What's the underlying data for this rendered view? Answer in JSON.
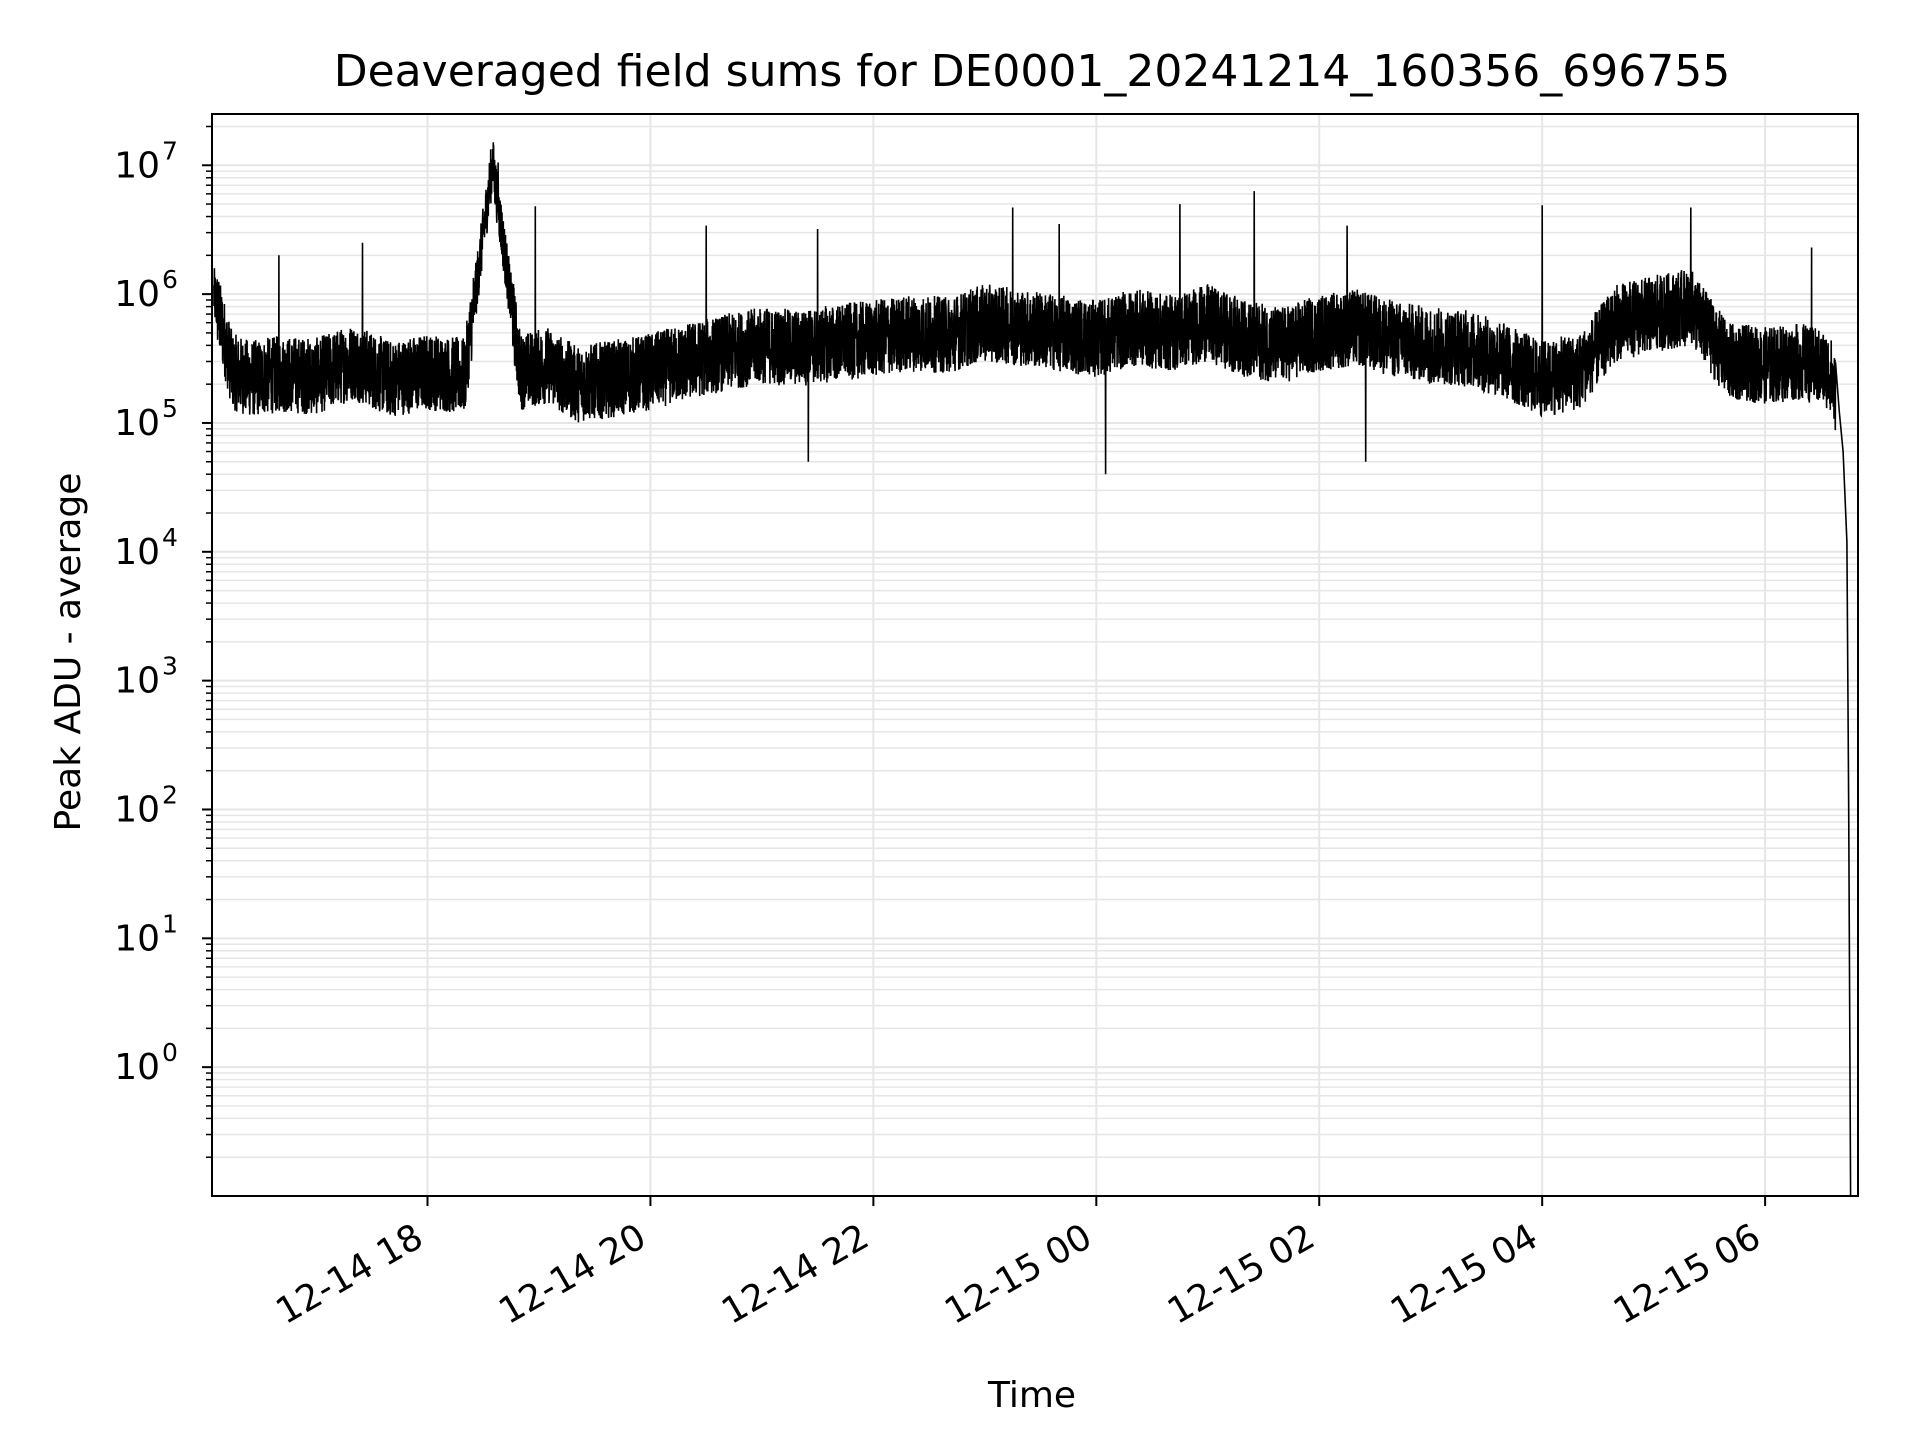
{
  "chart_data": {
    "type": "line",
    "title": "Deaveraged field sums for DE0001_20241214_160356_696755",
    "xlabel": "Time",
    "ylabel": "Peak ADU - average",
    "y_scale": "log",
    "ylim": [
      0.1,
      25000000
    ],
    "xlim": [
      "2024-12-14T16:04",
      "2024-12-15T06:50"
    ],
    "grid": true,
    "legend": "none",
    "line_color": "#000000",
    "grid_color": "#e6e6e6",
    "x_ticks": [
      {
        "label": "12-14 18",
        "time": "2024-12-14T18:00"
      },
      {
        "label": "12-14 20",
        "time": "2024-12-14T20:00"
      },
      {
        "label": "12-14 22",
        "time": "2024-12-14T22:00"
      },
      {
        "label": "12-15 00",
        "time": "2024-12-15T00:00"
      },
      {
        "label": "12-15 02",
        "time": "2024-12-15T02:00"
      },
      {
        "label": "12-15 04",
        "time": "2024-12-15T04:00"
      },
      {
        "label": "12-15 06",
        "time": "2024-12-15T06:00"
      }
    ],
    "y_ticks": [
      {
        "base": "10",
        "exp": "0",
        "value": 1
      },
      {
        "base": "10",
        "exp": "1",
        "value": 10
      },
      {
        "base": "10",
        "exp": "2",
        "value": 100
      },
      {
        "base": "10",
        "exp": "3",
        "value": 1000
      },
      {
        "base": "10",
        "exp": "4",
        "value": 10000
      },
      {
        "base": "10",
        "exp": "5",
        "value": 100000
      },
      {
        "base": "10",
        "exp": "6",
        "value": 1000000
      },
      {
        "base": "10",
        "exp": "7",
        "value": 10000000
      }
    ],
    "series": [
      {
        "x": [
          "2024-12-14T16:05",
          "2024-12-14T16:15",
          "2024-12-14T16:25",
          "2024-12-14T16:40",
          "2024-12-14T17:00",
          "2024-12-14T17:20",
          "2024-12-14T17:40",
          "2024-12-14T18:00",
          "2024-12-14T18:20",
          "2024-12-14T18:35",
          "2024-12-14T18:50",
          "2024-12-14T19:05",
          "2024-12-14T19:20",
          "2024-12-14T19:40",
          "2024-12-14T20:00",
          "2024-12-14T20:20",
          "2024-12-14T20:40",
          "2024-12-14T21:00",
          "2024-12-14T21:20",
          "2024-12-14T21:40",
          "2024-12-14T22:00",
          "2024-12-14T22:20",
          "2024-12-14T22:40",
          "2024-12-14T23:00",
          "2024-12-14T23:20",
          "2024-12-14T23:40",
          "2024-12-15T00:00",
          "2024-12-15T00:20",
          "2024-12-15T00:40",
          "2024-12-15T01:00",
          "2024-12-15T01:20",
          "2024-12-15T01:40",
          "2024-12-15T02:00",
          "2024-12-15T02:20",
          "2024-12-15T02:40",
          "2024-12-15T03:00",
          "2024-12-15T03:20",
          "2024-12-15T03:40",
          "2024-12-15T04:00",
          "2024-12-15T04:20",
          "2024-12-15T04:40",
          "2024-12-15T05:00",
          "2024-12-15T05:20",
          "2024-12-15T05:40",
          "2024-12-15T06:00",
          "2024-12-15T06:20",
          "2024-12-15T06:35",
          "2024-12-15T06:40",
          "2024-12-15T06:42",
          "2024-12-15T06:44",
          "2024-12-15T06:45",
          "2024-12-15T06:46"
        ],
        "y": [
          1000000,
          250000,
          220000,
          240000,
          230000,
          300000,
          220000,
          250000,
          230000,
          10500000,
          250000,
          280000,
          200000,
          220000,
          250000,
          300000,
          350000,
          400000,
          380000,
          420000,
          450000,
          500000,
          480000,
          600000,
          550000,
          500000,
          450000,
          550000,
          500000,
          600000,
          450000,
          400000,
          500000,
          550000,
          450000,
          400000,
          380000,
          300000,
          220000,
          250000,
          600000,
          700000,
          800000,
          300000,
          280000,
          300000,
          250000,
          120000,
          60000,
          12000,
          100,
          0.1
        ],
        "spikes": [
          {
            "time": "2024-12-14T16:40",
            "value": 2000000
          },
          {
            "time": "2024-12-14T17:25",
            "value": 2500000
          },
          {
            "time": "2024-12-14T18:38",
            "value": 10500000
          },
          {
            "time": "2024-12-14T18:58",
            "value": 4800000
          },
          {
            "time": "2024-12-14T20:30",
            "value": 3400000
          },
          {
            "time": "2024-12-14T21:30",
            "value": 3200000
          },
          {
            "time": "2024-12-14T21:25",
            "value": 50000
          },
          {
            "time": "2024-12-14T23:15",
            "value": 4700000
          },
          {
            "time": "2024-12-14T23:40",
            "value": 3500000
          },
          {
            "time": "2024-12-15T00:45",
            "value": 5000000
          },
          {
            "time": "2024-12-15T00:05",
            "value": 40000
          },
          {
            "time": "2024-12-15T01:25",
            "value": 6300000
          },
          {
            "time": "2024-12-15T02:15",
            "value": 3400000
          },
          {
            "time": "2024-12-15T02:25",
            "value": 50000
          },
          {
            "time": "2024-12-15T04:00",
            "value": 4900000
          },
          {
            "time": "2024-12-15T05:20",
            "value": 4700000
          },
          {
            "time": "2024-12-15T06:25",
            "value": 2300000
          }
        ]
      }
    ]
  }
}
